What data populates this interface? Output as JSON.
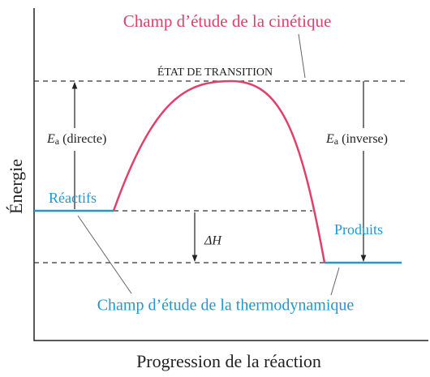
{
  "title_kinetics": "Champ d’étude de la cinétique",
  "transition_state": "ÉTAT DE TRANSITION",
  "ea_forward": {
    "symbol": "E",
    "subscript": "a",
    "note": "(directe)"
  },
  "ea_reverse": {
    "symbol": "E",
    "subscript": "a",
    "note": "(inverse)"
  },
  "reactants": "Réactifs",
  "products": "Produits",
  "delta_h": "ΔH",
  "title_thermo": "Champ d’étude de la thermodynamique",
  "y_axis_label": "Énergie",
  "x_axis_label": "Progression de la réaction"
}
